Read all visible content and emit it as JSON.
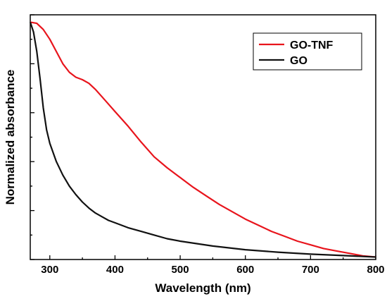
{
  "chart_data": {
    "type": "line",
    "title": "",
    "xlabel": "Wavelength (nm)",
    "ylabel": "Normalized absorbance",
    "xlim": [
      270,
      800
    ],
    "ylim": [
      0,
      1
    ],
    "x_ticks": [
      300,
      400,
      500,
      600,
      700,
      800
    ],
    "x_tick_labels": [
      "300",
      "400",
      "500",
      "600",
      "700",
      "800"
    ],
    "y_tick_labels_visible": false,
    "grid": false,
    "legend": "top-right",
    "series": [
      {
        "name": "GO-TNF",
        "color": "#e8141c",
        "x": [
          270,
          280,
          290,
          300,
          310,
          320,
          330,
          340,
          350,
          360,
          370,
          380,
          390,
          400,
          420,
          440,
          460,
          480,
          500,
          520,
          540,
          560,
          580,
          600,
          620,
          640,
          660,
          680,
          700,
          720,
          740,
          760,
          780,
          800
        ],
        "y": [
          0.97,
          0.965,
          0.94,
          0.9,
          0.85,
          0.8,
          0.765,
          0.745,
          0.735,
          0.72,
          0.695,
          0.665,
          0.635,
          0.605,
          0.545,
          0.48,
          0.42,
          0.375,
          0.335,
          0.295,
          0.26,
          0.225,
          0.195,
          0.165,
          0.14,
          0.115,
          0.095,
          0.075,
          0.06,
          0.045,
          0.035,
          0.025,
          0.015,
          0.01
        ]
      },
      {
        "name": "GO",
        "color": "#111111",
        "x": [
          270,
          275,
          280,
          285,
          290,
          295,
          300,
          310,
          320,
          330,
          340,
          350,
          360,
          370,
          380,
          390,
          400,
          420,
          440,
          460,
          480,
          500,
          550,
          600,
          650,
          700,
          750,
          800
        ],
        "y": [
          0.97,
          0.93,
          0.85,
          0.74,
          0.62,
          0.53,
          0.475,
          0.4,
          0.345,
          0.3,
          0.265,
          0.235,
          0.21,
          0.19,
          0.175,
          0.16,
          0.15,
          0.13,
          0.115,
          0.1,
          0.085,
          0.075,
          0.055,
          0.04,
          0.03,
          0.022,
          0.016,
          0.01
        ]
      }
    ]
  }
}
